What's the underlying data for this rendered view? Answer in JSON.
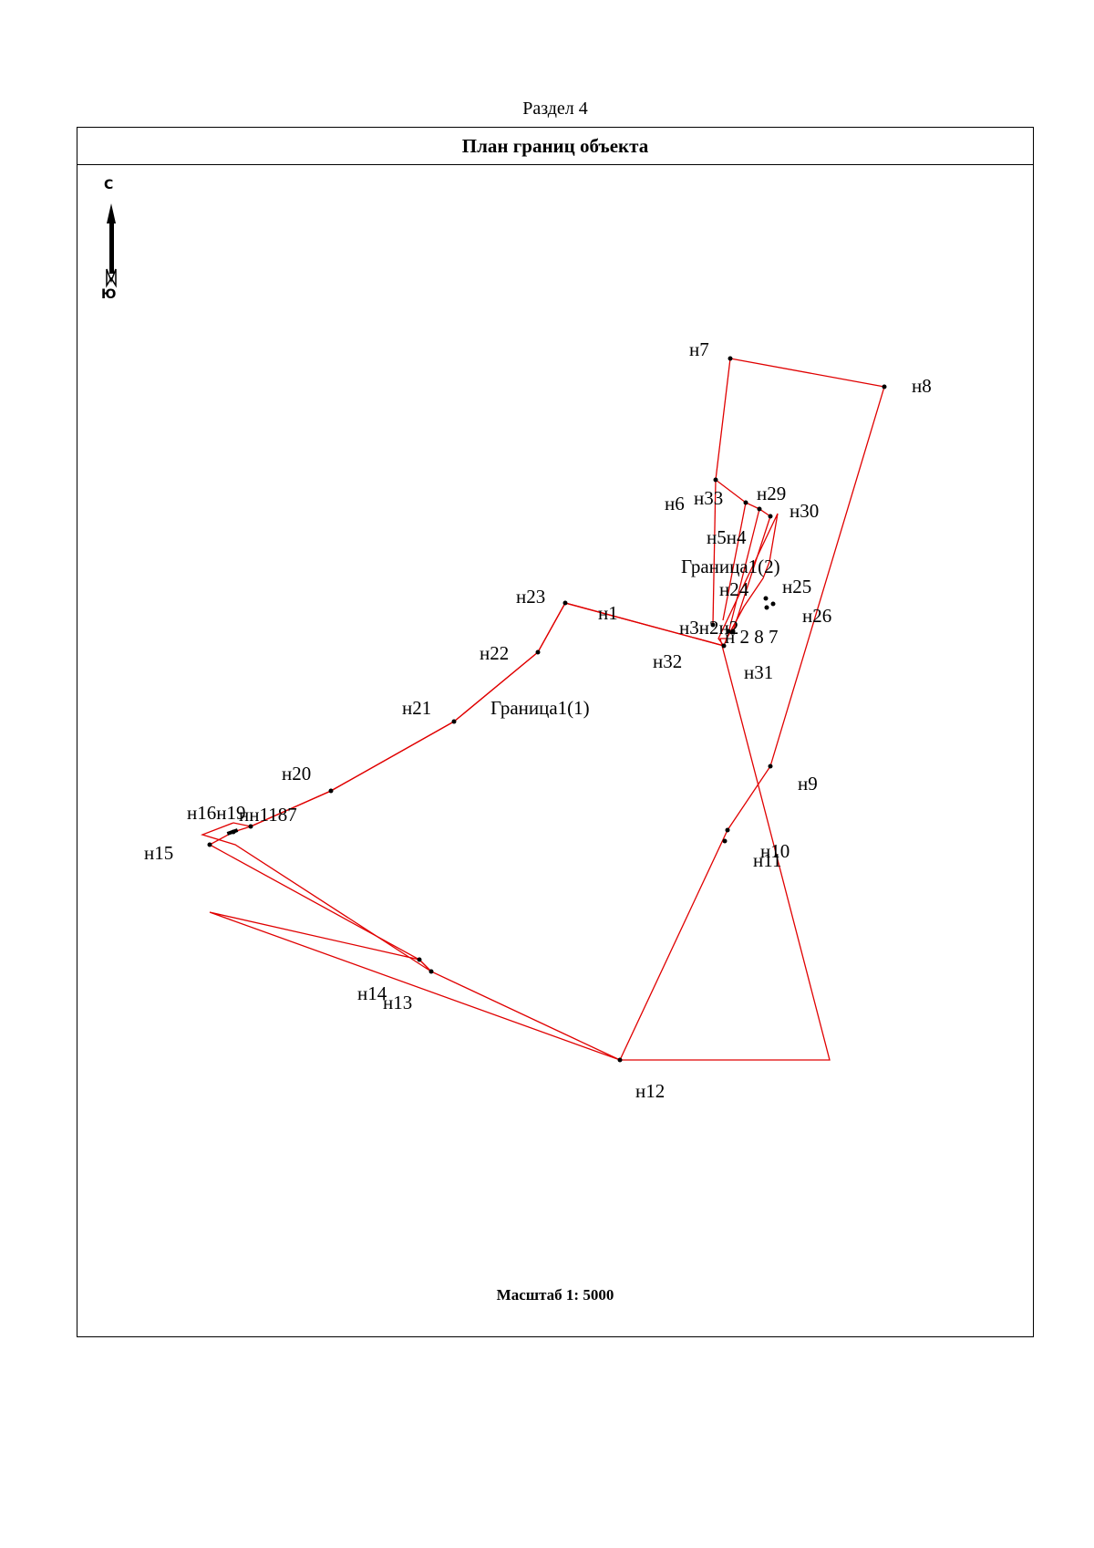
{
  "header": {
    "section": "Раздел 4",
    "title": "План границ объекта"
  },
  "compass": {
    "north": "С",
    "south": "Ю"
  },
  "scale": "Масштаб 1: 5000",
  "colors": {
    "boundary": "#e00000",
    "point": "#000000"
  },
  "contour_labels": {
    "c1": "Граница1(1)",
    "c2": "Граница1(2)"
  },
  "point_labels": {
    "n1": "н1",
    "n6": "н6",
    "n7": "н7",
    "n8": "н8",
    "n9": "н9",
    "n10": "н10",
    "n11": "н11",
    "n12": "н12",
    "n13": "н13",
    "n14": "н14",
    "n15": "н15",
    "n19": "н16н19",
    "n1817": "нн1187",
    "n20": "н20",
    "n21": "н21",
    "n22": "н22",
    "n23": "н23",
    "n24": "н24",
    "n25": "н25",
    "n26": "н26",
    "n29": "н29",
    "n30": "н30",
    "n31": "н31",
    "n32": "н32",
    "n33": "н33",
    "n54": "н5н4",
    "n32b": "н3н2н2",
    "n287": "н 2 8 7"
  }
}
